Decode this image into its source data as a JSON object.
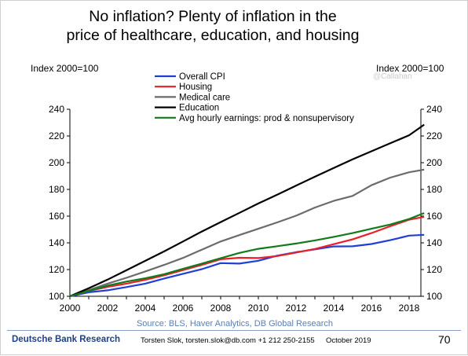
{
  "title_line1": "No inflation? Plenty of inflation in the",
  "title_line2": "price of healthcare, education, and housing",
  "axis_left_caption": "Index 2000=100",
  "axis_right_caption": "Index 2000=100",
  "watermark": "@Callahan",
  "source": "Source: BLS, Haver Analytics, DB Global Research",
  "footer": {
    "brand": "Deutsche Bank Research",
    "author": "Torsten Slok, torsten.slok@db.com  +1 212 250-2155",
    "date": "October 2019",
    "page": "70"
  },
  "chart_data": {
    "type": "line",
    "x": [
      2000,
      2001,
      2002,
      2003,
      2004,
      2005,
      2006,
      2007,
      2008,
      2009,
      2010,
      2011,
      2012,
      2013,
      2014,
      2015,
      2016,
      2017,
      2018,
      2018.8
    ],
    "xticks": [
      2000,
      2002,
      2004,
      2006,
      2008,
      2010,
      2012,
      2014,
      2016,
      2018
    ],
    "ylim": [
      100,
      240
    ],
    "yticks": [
      100,
      120,
      140,
      160,
      180,
      200,
      220,
      240
    ],
    "grid": false,
    "legend_position": "top-center",
    "series": [
      {
        "name": "Overall CPI",
        "color": "#1f3fd6",
        "values": [
          100,
          103,
          104.5,
          106.9,
          109.5,
          113.3,
          116.8,
          120.3,
          124.8,
          124.5,
          126.6,
          130.4,
          133,
          135.1,
          137.3,
          137.4,
          139.1,
          142,
          145.4,
          146
        ]
      },
      {
        "name": "Housing",
        "color": "#e8202a",
        "values": [
          100,
          104,
          107,
          109.5,
          112.3,
          115.7,
          119.6,
          123.5,
          127.7,
          128.8,
          128.6,
          130.1,
          132.7,
          135.4,
          139,
          142.6,
          147.3,
          152.4,
          157.3,
          159.5
        ]
      },
      {
        "name": "Medical care",
        "color": "#6b6b6b",
        "values": [
          100,
          104.6,
          109.5,
          113.8,
          118.6,
          123.5,
          128.7,
          134.9,
          141,
          145.8,
          150.5,
          155.3,
          160.3,
          166.4,
          171.4,
          175.1,
          183.1,
          188.8,
          192.8,
          194.8
        ]
      },
      {
        "name": "Education",
        "color": "#000000",
        "values": [
          100,
          106,
          112.5,
          119.5,
          126.5,
          133.6,
          141,
          148.5,
          155.5,
          162.5,
          169.5,
          176,
          182.8,
          189.5,
          196,
          202.5,
          208.5,
          214.5,
          220.5,
          228.5
        ]
      },
      {
        "name": "Avg hourly earnings: prod & nonsupervisory",
        "color": "#137a1c",
        "values": [
          100,
          104,
          108,
          111,
          113.5,
          116.5,
          120.5,
          124.5,
          128.5,
          132.5,
          135.5,
          137.5,
          139.5,
          141.8,
          144.5,
          147.3,
          150.5,
          153.7,
          157.8,
          162.3
        ]
      }
    ]
  }
}
